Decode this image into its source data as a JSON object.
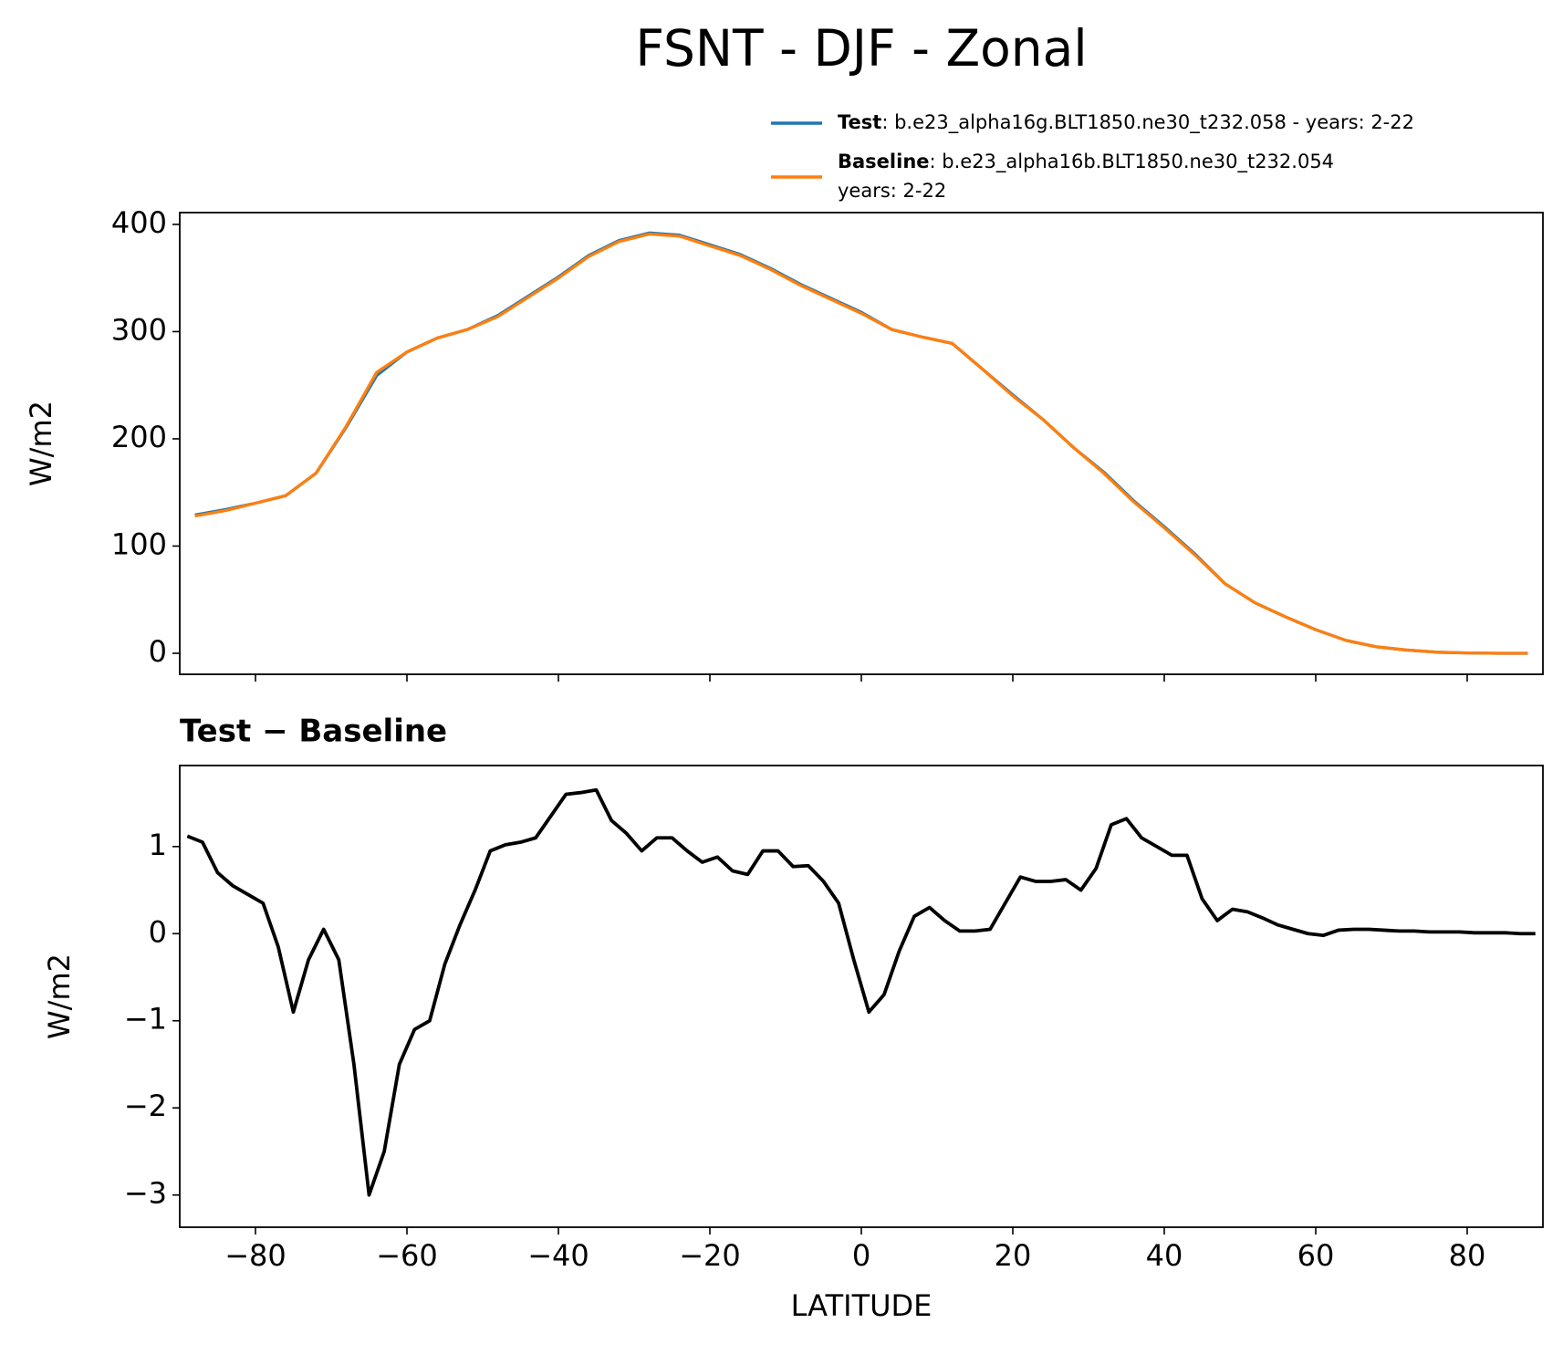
{
  "chart_data": [
    {
      "type": "line",
      "title": "FSNT - DJF - Zonal",
      "ylabel": "W/m2",
      "x": [
        -88,
        -84,
        -80,
        -76,
        -72,
        -68,
        -64,
        -60,
        -56,
        -52,
        -48,
        -44,
        -40,
        -36,
        -32,
        -28,
        -24,
        -20,
        -16,
        -12,
        -8,
        -4,
        0,
        4,
        8,
        12,
        16,
        20,
        24,
        28,
        32,
        36,
        40,
        44,
        48,
        52,
        56,
        60,
        64,
        68,
        72,
        76,
        80,
        84,
        88
      ],
      "series": [
        {
          "name": "Test",
          "description": [
            ": b.e23_alpha16g.BLT1850.ne30_t232.058 - years: 2-22"
          ],
          "color": "#1f77b4",
          "values": [
            129,
            134,
            140,
            147,
            168,
            211,
            259,
            281,
            294,
            302,
            315,
            333,
            351,
            371,
            385,
            392,
            390,
            381,
            372,
            359,
            344,
            331,
            318,
            302,
            295,
            289,
            265,
            241,
            218,
            192,
            169,
            142,
            118,
            93,
            65,
            47,
            34,
            22,
            12,
            6,
            3,
            1,
            0.3,
            0,
            0
          ]
        },
        {
          "name": "Baseline",
          "description": [
            ": b.e23_alpha16b.BLT1850.ne30_t232.054",
            "years: 2-22"
          ],
          "color": "#ff7f0e",
          "values": [
            128,
            133,
            140,
            147,
            168,
            212,
            262,
            281,
            294,
            302,
            314,
            332,
            350,
            370,
            384,
            391,
            389,
            380,
            371,
            358,
            343,
            330,
            317,
            302,
            295,
            289,
            265,
            240,
            218,
            192,
            168,
            141,
            117,
            92,
            65,
            47,
            34,
            22,
            12,
            6,
            3,
            1,
            0.3,
            0,
            0
          ]
        }
      ],
      "xlim": [
        -90,
        90
      ],
      "ylim": [
        -19.6,
        411
      ],
      "yticks": [
        0,
        100,
        200,
        300,
        400
      ]
    },
    {
      "type": "line",
      "title": "Test − Baseline",
      "xlabel": "LATITUDE",
      "ylabel": "W/m2",
      "x": [
        -89,
        -87,
        -85,
        -83,
        -81,
        -79,
        -77,
        -75,
        -73,
        -71,
        -69,
        -67,
        -65,
        -63,
        -61,
        -59,
        -57,
        -55,
        -53,
        -51,
        -49,
        -47,
        -45,
        -43,
        -41,
        -39,
        -37,
        -35,
        -33,
        -31,
        -29,
        -27,
        -25,
        -23,
        -21,
        -19,
        -17,
        -15,
        -13,
        -11,
        -9,
        -7,
        -5,
        -3,
        -1,
        1,
        3,
        5,
        7,
        9,
        11,
        13,
        15,
        17,
        19,
        21,
        23,
        25,
        27,
        29,
        31,
        33,
        35,
        37,
        39,
        41,
        43,
        45,
        47,
        49,
        51,
        53,
        55,
        57,
        59,
        61,
        63,
        65,
        67,
        69,
        71,
        73,
        75,
        77,
        79,
        81,
        83,
        85,
        87,
        89
      ],
      "series": [
        {
          "name": "Test − Baseline",
          "color": "#000000",
          "values": [
            1.12,
            1.05,
            0.7,
            0.55,
            0.45,
            0.35,
            -0.15,
            -0.9,
            -0.3,
            0.05,
            -0.3,
            -1.5,
            -3.0,
            -2.5,
            -1.5,
            -1.1,
            -1.0,
            -0.35,
            0.1,
            0.5,
            0.95,
            1.02,
            1.05,
            1.1,
            1.35,
            1.6,
            1.62,
            1.65,
            1.3,
            1.15,
            0.95,
            1.1,
            1.1,
            0.95,
            0.82,
            0.88,
            0.72,
            0.68,
            0.95,
            0.95,
            0.77,
            0.78,
            0.6,
            0.35,
            -0.3,
            -0.9,
            -0.7,
            -0.2,
            0.2,
            0.3,
            0.15,
            0.03,
            0.03,
            0.05,
            0.35,
            0.65,
            0.6,
            0.6,
            0.62,
            0.5,
            0.75,
            1.25,
            1.32,
            1.1,
            1.0,
            0.9,
            0.9,
            0.4,
            0.15,
            0.28,
            0.25,
            0.18,
            0.1,
            0.05,
            0.0,
            -0.02,
            0.04,
            0.05,
            0.05,
            0.04,
            0.03,
            0.03,
            0.02,
            0.02,
            0.02,
            0.01,
            0.01,
            0.01,
            0,
            0
          ]
        }
      ],
      "xlim": [
        -90,
        90
      ],
      "ylim": [
        -3.37,
        1.93
      ],
      "xticks": [
        {
          "value": -80,
          "label": "−80"
        },
        {
          "value": -60,
          "label": "−60"
        },
        {
          "value": -40,
          "label": "−40"
        },
        {
          "value": -20,
          "label": "−20"
        },
        0,
        20,
        40,
        60,
        80
      ],
      "yticks": [
        {
          "value": -3,
          "label": "−3"
        },
        {
          "value": -2,
          "label": "−2"
        },
        {
          "value": -1,
          "label": "−1"
        },
        0,
        1
      ]
    }
  ]
}
